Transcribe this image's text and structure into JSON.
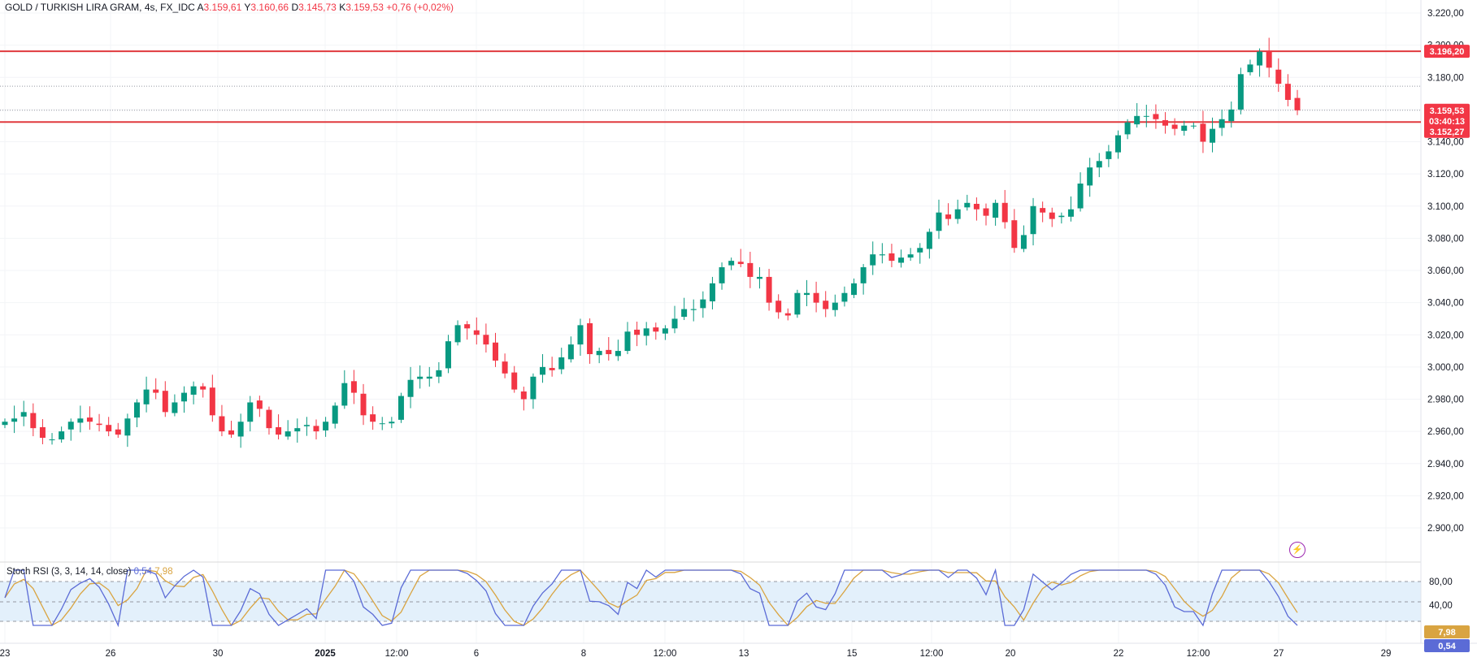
{
  "header": {
    "symbol": "GOLD / TURKISH LIRA GRAM, 4s, FX_IDC",
    "open_label": "A",
    "open": "3.159,61",
    "high_label": "Y",
    "high": "3.160,66",
    "low_label": "D",
    "low": "3.145,73",
    "close_label": "K",
    "close": "3.159,53",
    "change": "+0,76 (+0,02%)"
  },
  "price_tags": {
    "resistance": "3.196,20",
    "last": "3.159,53",
    "countdown": "03:40:13",
    "support": "3.152,27"
  },
  "rsi": {
    "title": "Stoch RSI (3, 3, 14, 14, close)",
    "k_value": "0,54",
    "d_value": "7,98",
    "levels": [
      "80,00",
      "40,00"
    ]
  },
  "colors": {
    "up": "#089981",
    "down": "#f23645",
    "k_line": "#5b6bd6",
    "d_line": "#d9a441",
    "level_line": "#e03a3e"
  },
  "icons": [
    "lightning-icon"
  ],
  "chart_data": [
    {
      "type": "candlestick",
      "title": "GOLD / TURKISH LIRA GRAM, 4s, FX_IDC",
      "y_ticks": [
        "3.220,00",
        "3.200,00",
        "3.180,00",
        "3.160,00",
        "3.140,00",
        "3.120,00",
        "3.100,00",
        "3.080,00",
        "3.060,00",
        "3.040,00",
        "3.020,00",
        "3.000,00",
        "2.980,00",
        "2.960,00",
        "2.940,00",
        "2.920,00",
        "2.900,00"
      ],
      "ylim": [
        2890,
        3228
      ],
      "x_ticks": [
        "23",
        "26",
        "30",
        "2025",
        "12:00",
        "6",
        "8",
        "12:00",
        "13",
        "15",
        "12:00",
        "20",
        "22",
        "12:00",
        "27",
        "29"
      ],
      "horizontal_lines": [
        3196.2,
        3152.27
      ],
      "dotted_lines": [
        3174.5,
        3159.53
      ],
      "close": [
        2966,
        2968,
        2972,
        2962,
        2956,
        2955,
        2960,
        2966,
        2968,
        2966,
        2964,
        2960,
        2958,
        2968,
        2978,
        2986,
        2984,
        2972,
        2978,
        2984,
        2988,
        2986,
        2970,
        2960,
        2958,
        2966,
        2978,
        2974,
        2962,
        2958,
        2960,
        2962,
        2964,
        2960,
        2966,
        2976,
        2990,
        2984,
        2970,
        2966,
        2965,
        2966,
        2982,
        2992,
        2994,
        2994,
        2998,
        3016,
        3026,
        3024,
        3020,
        3014,
        3004,
        2996,
        2986,
        2980,
        2994,
        3000,
        2998,
        3006,
        3014,
        3026,
        3008,
        3010,
        3008,
        3010,
        3022,
        3020,
        3024,
        3022,
        3024,
        3030,
        3036,
        3036,
        3042,
        3052,
        3062,
        3066,
        3064,
        3056,
        3056,
        3040,
        3034,
        3032,
        3046,
        3046,
        3040,
        3036,
        3040,
        3046,
        3052,
        3062,
        3070,
        3070,
        3066,
        3068,
        3070,
        3074,
        3084,
        3096,
        3092,
        3098,
        3102,
        3098,
        3094,
        3102,
        3090,
        3074,
        3082,
        3100,
        3096,
        3092,
        3094,
        3098,
        3114,
        3124,
        3128,
        3134,
        3144,
        3152,
        3156,
        3156,
        3154,
        3150,
        3148,
        3150,
        3150,
        3140,
        3148,
        3154,
        3160,
        3182,
        3188,
        3196,
        3186,
        3176,
        3166,
        3159.53
      ],
      "series": [
        {
          "name": "Stoch RSI K",
          "value_label": "0,54"
        },
        {
          "name": "Stoch RSI D",
          "value_label": "7,98"
        }
      ]
    }
  ]
}
